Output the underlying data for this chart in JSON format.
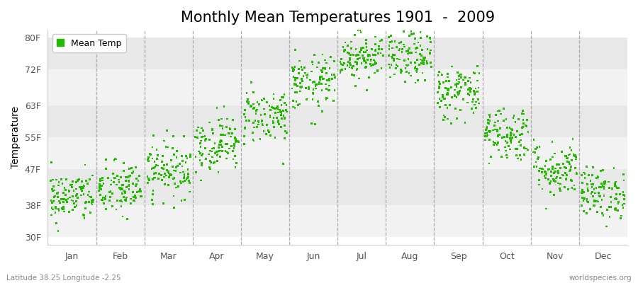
{
  "title": "Monthly Mean Temperatures 1901  -  2009",
  "ylabel": "Temperature",
  "ytick_labels": [
    "30F",
    "38F",
    "47F",
    "55F",
    "63F",
    "72F",
    "80F"
  ],
  "ytick_values": [
    30,
    38,
    47,
    55,
    63,
    72,
    80
  ],
  "ylim": [
    28,
    82
  ],
  "months": [
    "Jan",
    "Feb",
    "Mar",
    "Apr",
    "May",
    "Jun",
    "Jul",
    "Aug",
    "Sep",
    "Oct",
    "Nov",
    "Dec"
  ],
  "month_means_F": [
    40.0,
    42.0,
    47.0,
    53.5,
    60.5,
    68.5,
    75.5,
    75.0,
    66.5,
    56.0,
    47.0,
    41.0
  ],
  "month_stds_F": [
    3.2,
    3.5,
    3.5,
    3.5,
    3.5,
    3.5,
    3.0,
    3.2,
    3.5,
    3.5,
    3.5,
    3.2
  ],
  "n_years": 109,
  "dot_color": "#22bb00",
  "dot_size": 4,
  "background_color": "#ffffff",
  "plot_bg_light": "#f2f2f2",
  "plot_bg_dark": "#e8e8e8",
  "dashed_line_color": "#999999",
  "title_fontsize": 15,
  "axis_label_fontsize": 10,
  "tick_fontsize": 9,
  "footer_left": "Latitude 38.25 Longitude -2.25",
  "footer_right": "worldspecies.org",
  "legend_label": "Mean Temp",
  "seed": 42
}
